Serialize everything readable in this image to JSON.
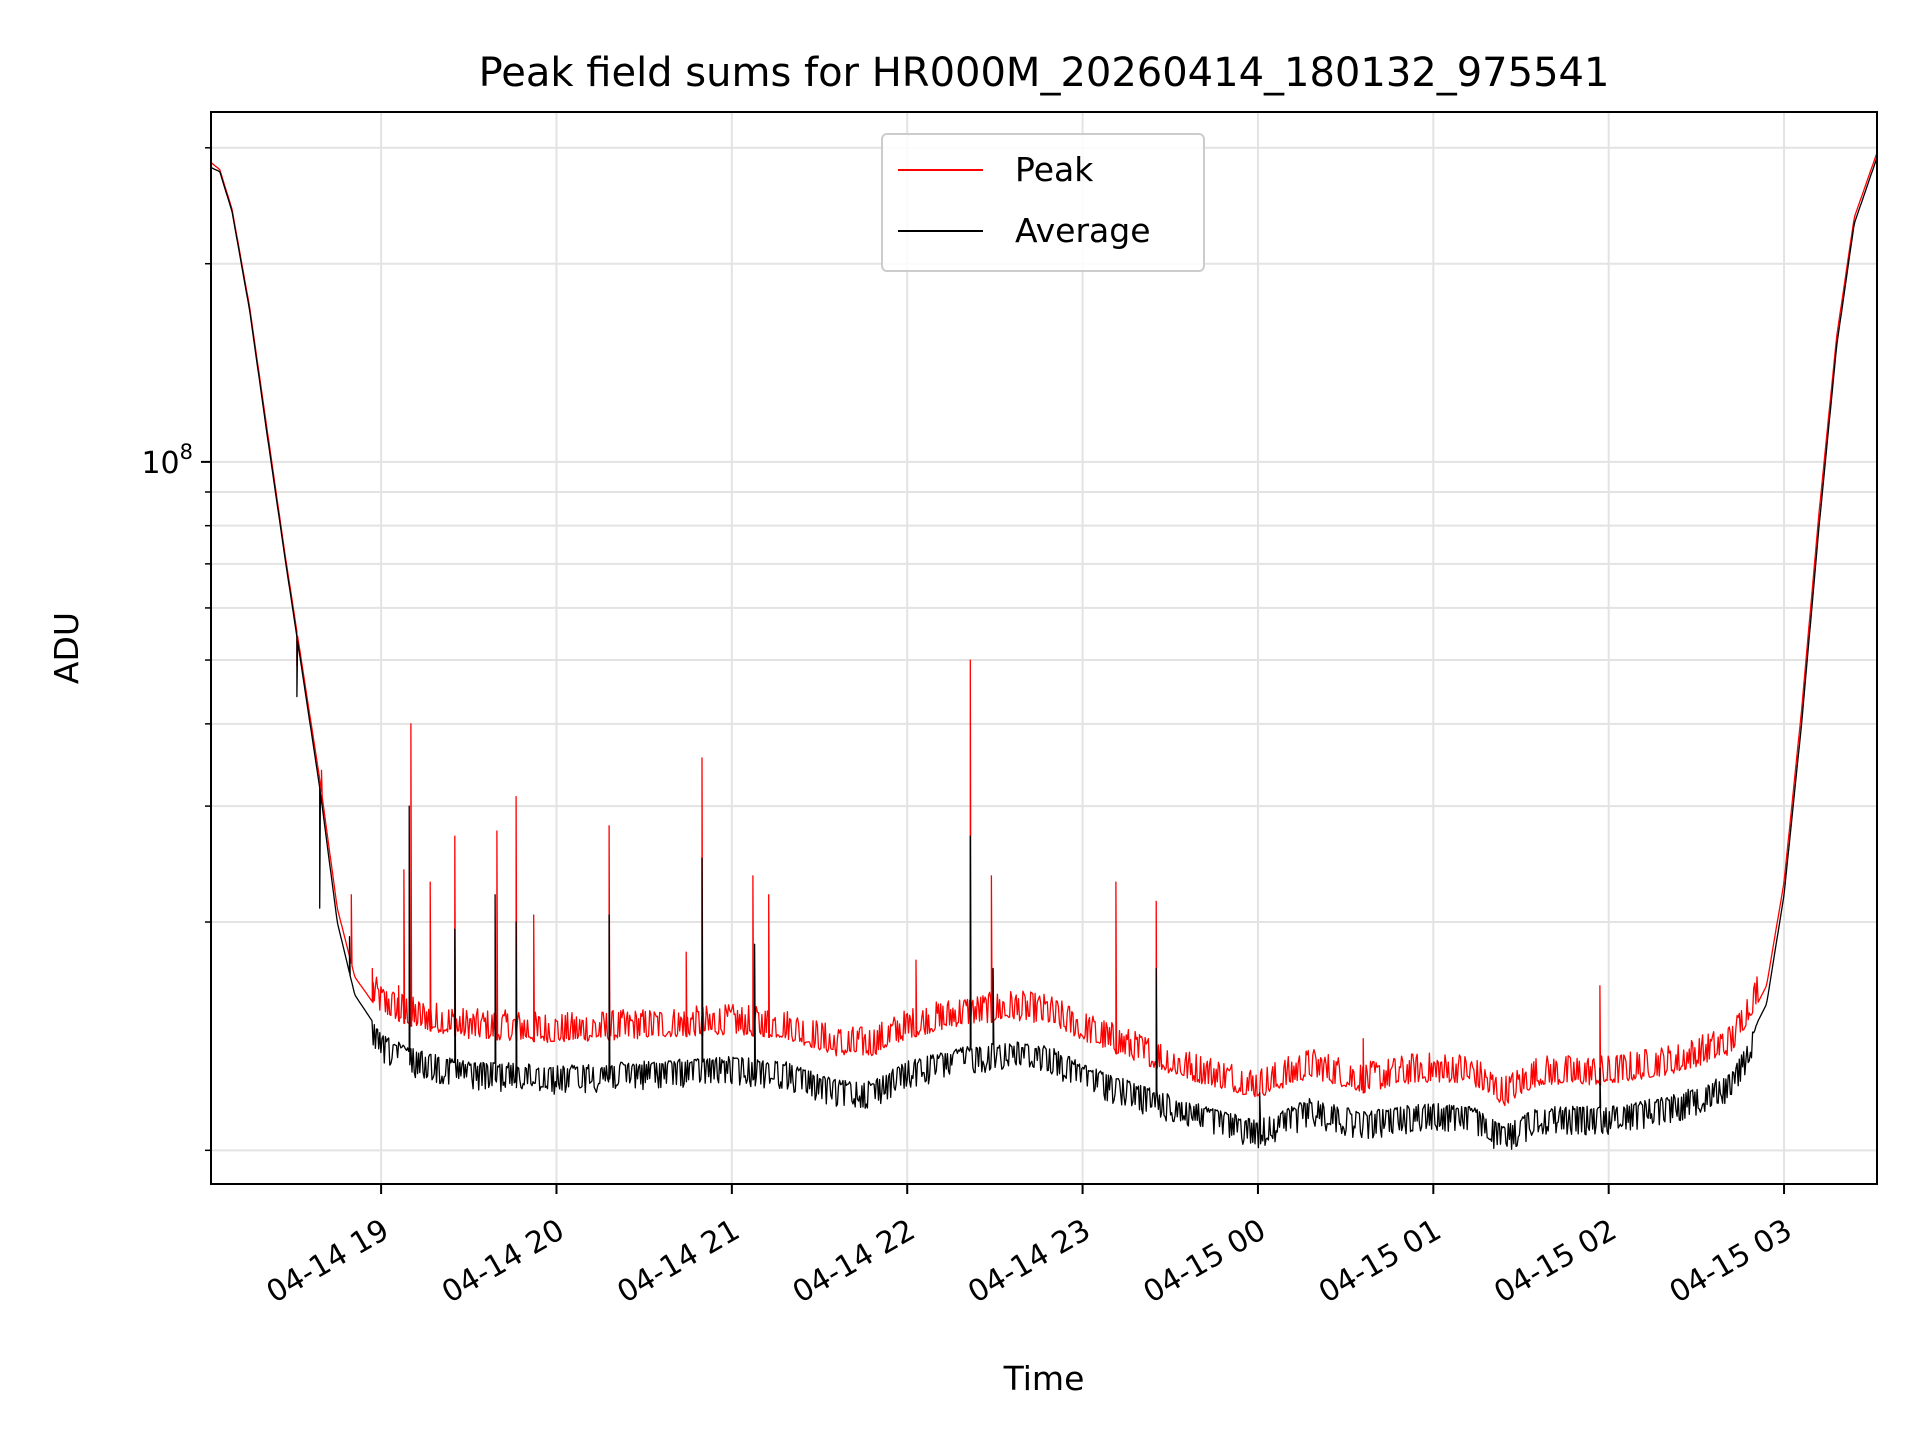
{
  "chart_data": {
    "type": "line",
    "title": "Peak field sums for HR000M_20260414_180132_975541",
    "xlabel": "Time",
    "ylabel": "ADU",
    "yscale": "log",
    "ylim": [
      8000000,
      340000000
    ],
    "xlim_hours_from_04_14_18_00": [
      0.03,
      9.53
    ],
    "grid": true,
    "legend_position": "top-center",
    "x_ticks": [
      {
        "label": "04-14 19",
        "value": 1
      },
      {
        "label": "04-14 20",
        "value": 2
      },
      {
        "label": "04-14 21",
        "value": 3
      },
      {
        "label": "04-14 22",
        "value": 4
      },
      {
        "label": "04-14 23",
        "value": 5
      },
      {
        "label": "04-15 00",
        "value": 6
      },
      {
        "label": "04-15 01",
        "value": 7
      },
      {
        "label": "04-15 02",
        "value": 8
      },
      {
        "label": "04-15 03",
        "value": 9
      }
    ],
    "y_major_ticks": [
      {
        "label_base": "10",
        "label_exp": "8",
        "value": 100000000
      }
    ],
    "y_minor_ticks": [
      9000000,
      20000000,
      30000000,
      40000000,
      50000000,
      60000000,
      70000000,
      80000000,
      90000000,
      200000000,
      300000000
    ],
    "series": [
      {
        "name": "Average",
        "color": "#000000",
        "baseline": [
          [
            0.03,
            280000000
          ],
          [
            0.08,
            276000000
          ],
          [
            0.15,
            240000000
          ],
          [
            0.25,
            170000000
          ],
          [
            0.35,
            110000000
          ],
          [
            0.45,
            72000000
          ],
          [
            0.55,
            48000000
          ],
          [
            0.65,
            32000000
          ],
          [
            0.75,
            20000000
          ],
          [
            0.85,
            15500000
          ],
          [
            1.0,
            13500000
          ],
          [
            1.2,
            12800000
          ],
          [
            1.5,
            12300000
          ],
          [
            1.8,
            12200000
          ],
          [
            2.0,
            12100000
          ],
          [
            2.5,
            12300000
          ],
          [
            3.0,
            12500000
          ],
          [
            3.3,
            12300000
          ],
          [
            3.6,
            11500000
          ],
          [
            3.8,
            11500000
          ],
          [
            4.0,
            12300000
          ],
          [
            4.3,
            12900000
          ],
          [
            4.6,
            13200000
          ],
          [
            4.8,
            13000000
          ],
          [
            5.0,
            12200000
          ],
          [
            5.3,
            11400000
          ],
          [
            5.6,
            10700000
          ],
          [
            6.0,
            10000000
          ],
          [
            6.3,
            10800000
          ],
          [
            6.6,
            10300000
          ],
          [
            6.9,
            10600000
          ],
          [
            7.2,
            10600000
          ],
          [
            7.4,
            9800000
          ],
          [
            7.6,
            10500000
          ],
          [
            8.0,
            10500000
          ],
          [
            8.4,
            11000000
          ],
          [
            8.7,
            11800000
          ],
          [
            8.9,
            15000000
          ],
          [
            9.0,
            22000000
          ],
          [
            9.1,
            40000000
          ],
          [
            9.2,
            80000000
          ],
          [
            9.3,
            150000000
          ],
          [
            9.4,
            230000000
          ],
          [
            9.53,
            290000000
          ]
        ],
        "spikes": [
          [
            0.52,
            44000000
          ],
          [
            0.65,
            21000000
          ],
          [
            0.82,
            19000000
          ],
          [
            1.16,
            30000000
          ],
          [
            1.42,
            19500000
          ],
          [
            1.65,
            22000000
          ],
          [
            1.77,
            20000000
          ],
          [
            2.3,
            20500000
          ],
          [
            2.83,
            25000000
          ],
          [
            3.13,
            18500000
          ],
          [
            4.36,
            27000000
          ],
          [
            4.49,
            17000000
          ],
          [
            5.42,
            17000000
          ],
          [
            6.01,
            11000000
          ],
          [
            7.95,
            12000000
          ]
        ]
      },
      {
        "name": "Peak",
        "color": "#ff0000",
        "baseline": [
          [
            0.03,
            285000000
          ],
          [
            0.08,
            278000000
          ],
          [
            0.15,
            242000000
          ],
          [
            0.25,
            172000000
          ],
          [
            0.35,
            112000000
          ],
          [
            0.45,
            73000000
          ],
          [
            0.55,
            49000000
          ],
          [
            0.65,
            33000000
          ],
          [
            0.75,
            21000000
          ],
          [
            0.85,
            16500000
          ],
          [
            1.0,
            14500000
          ],
          [
            1.2,
            13800000
          ],
          [
            1.5,
            13300000
          ],
          [
            1.8,
            13200000
          ],
          [
            2.0,
            13100000
          ],
          [
            2.5,
            13300000
          ],
          [
            3.0,
            13500000
          ],
          [
            3.3,
            13300000
          ],
          [
            3.6,
            12500000
          ],
          [
            3.8,
            12500000
          ],
          [
            4.0,
            13300000
          ],
          [
            4.3,
            13900000
          ],
          [
            4.6,
            14200000
          ],
          [
            4.8,
            14000000
          ],
          [
            5.0,
            13200000
          ],
          [
            5.3,
            12300000
          ],
          [
            5.6,
            11500000
          ],
          [
            6.0,
            10800000
          ],
          [
            6.3,
            11600000
          ],
          [
            6.6,
            11000000
          ],
          [
            6.9,
            11400000
          ],
          [
            7.2,
            11400000
          ],
          [
            7.4,
            10500000
          ],
          [
            7.6,
            11300000
          ],
          [
            8.0,
            11300000
          ],
          [
            8.4,
            11800000
          ],
          [
            8.7,
            12600000
          ],
          [
            8.9,
            16000000
          ],
          [
            9.0,
            23000000
          ],
          [
            9.1,
            42000000
          ],
          [
            9.2,
            84000000
          ],
          [
            9.3,
            155000000
          ],
          [
            9.4,
            235000000
          ],
          [
            9.53,
            295000000
          ]
        ],
        "spikes": [
          [
            0.52,
            49000000
          ],
          [
            0.66,
            34000000
          ],
          [
            0.83,
            22000000
          ],
          [
            0.95,
            17000000
          ],
          [
            1.1,
            16000000
          ],
          [
            1.13,
            24000000
          ],
          [
            1.17,
            40000000
          ],
          [
            1.28,
            23000000
          ],
          [
            1.42,
            27000000
          ],
          [
            1.66,
            27500000
          ],
          [
            1.77,
            31000000
          ],
          [
            1.87,
            20500000
          ],
          [
            2.3,
            28000000
          ],
          [
            2.83,
            35500000
          ],
          [
            2.74,
            18000000
          ],
          [
            3.12,
            23500000
          ],
          [
            3.21,
            22000000
          ],
          [
            4.05,
            17500000
          ],
          [
            4.36,
            50000000
          ],
          [
            4.48,
            23500000
          ],
          [
            5.19,
            23000000
          ],
          [
            5.42,
            21500000
          ],
          [
            6.6,
            13300000
          ],
          [
            7.95,
            16000000
          ]
        ]
      }
    ]
  }
}
